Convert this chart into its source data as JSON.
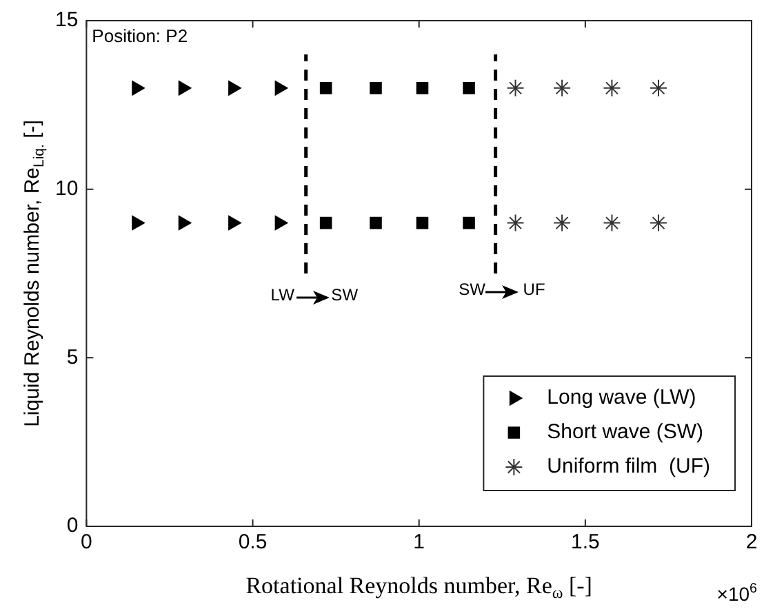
{
  "chart_data": {
    "type": "scatter",
    "xlabel": "Rotational Reynolds number, Re$_{ω}$ [-]",
    "ylabel": "Liquid Reynolds number, Re$_{Liq.}$ [-]",
    "xlim": [
      0,
      2
    ],
    "ylim": [
      0,
      15
    ],
    "xticks": [
      0,
      0.5,
      1,
      1.5,
      2
    ],
    "yticks": [
      0,
      5,
      10,
      15
    ],
    "grid": false,
    "legend": "bottom right",
    "series": [
      {
        "name": "Long wave (LW)",
        "marker": "triangle",
        "color": "#000000",
        "x": [
          0.15,
          0.29,
          0.44,
          0.58,
          0.15,
          0.29,
          0.44,
          0.58
        ],
        "values": [
          13,
          13,
          13,
          13,
          9,
          9,
          9,
          9
        ]
      },
      {
        "name": "Short wave (SW)",
        "marker": "square",
        "color": "#000000",
        "x": [
          0.72,
          0.87,
          1.01,
          1.15,
          0.72,
          0.87,
          1.01,
          1.15
        ],
        "values": [
          13,
          13,
          13,
          13,
          9,
          9,
          9,
          9
        ]
      },
      {
        "name": "Uniform film  (UF)",
        "marker": "cross",
        "color": "#333333",
        "x": [
          1.29,
          1.43,
          1.58,
          1.72,
          1.29,
          1.43,
          1.58,
          1.72
        ],
        "values": [
          13,
          13,
          13,
          13,
          9,
          9,
          9,
          9
        ]
      },
      {
        "type": "line",
        "line_style": "dashed",
        "marker": "none",
        "color": "#000000",
        "x": [
          0.66,
          0.66
        ],
        "values": [
          7.5,
          14
        ]
      },
      {
        "type": "line",
        "line_style": "dashed",
        "marker": "none",
        "color": "#000000",
        "x": [
          1.23,
          1.23
        ],
        "values": [
          7.5,
          14
        ]
      }
    ],
    "annotations": [
      "Position: P2",
      "×10$^{6}$",
      "LW",
      "SW",
      "SW",
      "UF"
    ]
  }
}
